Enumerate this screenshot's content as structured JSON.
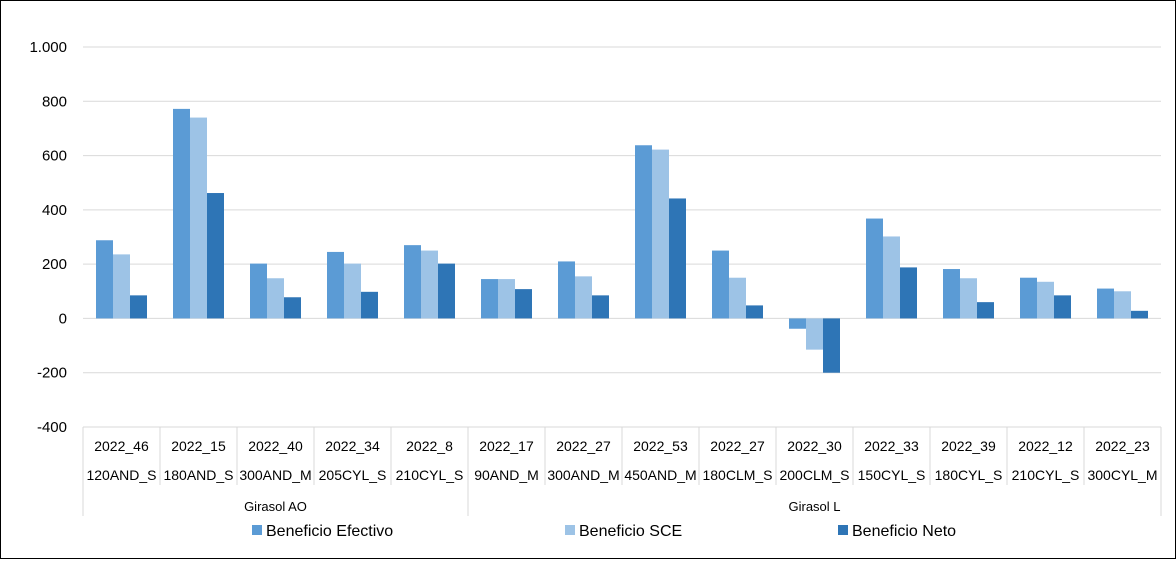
{
  "chart_data": {
    "type": "bar",
    "title": "",
    "ylabel": "",
    "xlabel": "",
    "ylim": [
      -400,
      1000
    ],
    "y_ticks": [
      -400,
      -200,
      0,
      200,
      400,
      600,
      800,
      1000
    ],
    "y_tick_labels": [
      "-400",
      "-200",
      "0",
      "200",
      "400",
      "600",
      "800",
      "1.000"
    ],
    "grid": true,
    "legend_position": "bottom",
    "categories_level1": [
      "2022_46",
      "2022_15",
      "2022_40",
      "2022_34",
      "2022_8",
      "2022_17",
      "2022_27",
      "2022_53",
      "2022_27",
      "2022_30",
      "2022_33",
      "2022_39",
      "2022_12",
      "2022_23"
    ],
    "categories_level2": [
      "120AND_S",
      "180AND_S",
      "300AND_M",
      "205CYL_S",
      "210CYL_S",
      "90AND_M",
      "300AND_M",
      "450AND_M",
      "180CLM_S",
      "200CLM_S",
      "150CYL_S",
      "180CYL_S",
      "210CYL_S",
      "300CYL_M"
    ],
    "groups": [
      {
        "label": "Girasol  AO",
        "count": 5
      },
      {
        "label": "Girasol  L",
        "count": 9
      }
    ],
    "series": [
      {
        "name": "Beneficio Efectivo",
        "color": "#5B9BD5",
        "values": [
          288,
          772,
          202,
          245,
          270,
          145,
          210,
          638,
          250,
          -38,
          368,
          182,
          150,
          110
        ]
      },
      {
        "name": "Beneficio SCE",
        "color": "#9DC3E6",
        "values": [
          236,
          740,
          148,
          202,
          250,
          145,
          155,
          622,
          150,
          -115,
          302,
          148,
          135,
          100
        ]
      },
      {
        "name": "Beneficio Neto",
        "color": "#2E75B6",
        "values": [
          85,
          462,
          78,
          98,
          202,
          108,
          85,
          442,
          48,
          -200,
          188,
          60,
          85,
          28
        ]
      }
    ]
  }
}
